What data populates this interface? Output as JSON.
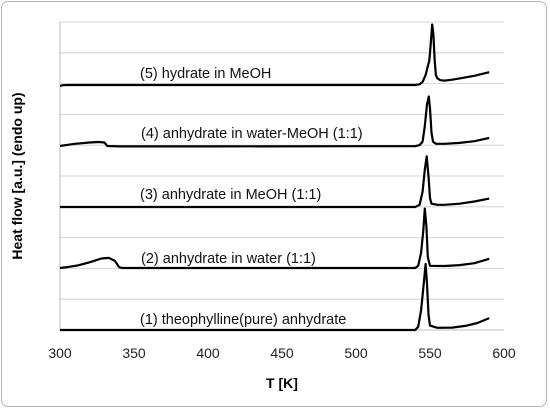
{
  "chart_data": {
    "type": "line",
    "title": "",
    "xlabel": "T [K]",
    "ylabel": "Heat flow [a.u.] (endo up)",
    "xlim": [
      300,
      600
    ],
    "xticks": [
      "300",
      "350",
      "400",
      "450",
      "500",
      "550",
      "600"
    ],
    "grid": "horizontal",
    "series": [
      {
        "name": "(5) hydrate in MeOH",
        "points": [
          [
            300,
            0.6
          ],
          [
            302,
            0.9
          ],
          [
            305,
            1.0
          ],
          [
            320,
            1.0
          ],
          [
            400,
            1.0
          ],
          [
            500,
            1.0
          ],
          [
            540,
            1.0
          ],
          [
            543,
            1.3
          ],
          [
            545,
            2.4
          ],
          [
            547,
            5.5
          ],
          [
            548.5,
            9.5
          ],
          [
            549.5,
            12.0
          ],
          [
            550.5,
            19.5
          ],
          [
            551.5,
            28.5
          ],
          [
            552.3,
            24.0
          ],
          [
            553.2,
            12.0
          ],
          [
            554,
            5.5
          ],
          [
            555,
            4.0
          ],
          [
            557,
            3.2
          ],
          [
            560,
            3.0
          ],
          [
            565,
            3.4
          ],
          [
            570,
            4.0
          ],
          [
            580,
            5.2
          ],
          [
            590,
            6.8
          ]
        ]
      },
      {
        "name": "(4) anhydrate in water-MeOH (1:1)",
        "points": [
          [
            300,
            1.0
          ],
          [
            303,
            1.3
          ],
          [
            310,
            2.0
          ],
          [
            320,
            2.6
          ],
          [
            326,
            2.8
          ],
          [
            330,
            2.6
          ],
          [
            332,
            1.0
          ],
          [
            340,
            0.8
          ],
          [
            400,
            0.8
          ],
          [
            500,
            0.9
          ],
          [
            540,
            0.9
          ],
          [
            543,
            1.4
          ],
          [
            545,
            3.0
          ],
          [
            546.5,
            10.0
          ],
          [
            548,
            20.0
          ],
          [
            549.2,
            23.5
          ],
          [
            550,
            18.0
          ],
          [
            551,
            7.0
          ],
          [
            552,
            3.0
          ],
          [
            554,
            2.0
          ],
          [
            560,
            2.0
          ],
          [
            570,
            2.4
          ],
          [
            580,
            3.2
          ],
          [
            590,
            4.7
          ]
        ]
      },
      {
        "name": "(3) anhydrate in MeOH (1:1)",
        "points": [
          [
            300,
            1.0
          ],
          [
            350,
            1.0
          ],
          [
            400,
            1.0
          ],
          [
            500,
            1.0
          ],
          [
            540,
            1.0
          ],
          [
            543,
            2.0
          ],
          [
            545,
            8.0
          ],
          [
            546.5,
            18.0
          ],
          [
            547.8,
            24.0
          ],
          [
            549,
            15.0
          ],
          [
            550,
            5.0
          ],
          [
            551,
            2.5
          ],
          [
            555,
            2.0
          ],
          [
            560,
            2.0
          ],
          [
            570,
            2.5
          ],
          [
            580,
            3.5
          ],
          [
            590,
            4.8
          ]
        ]
      },
      {
        "name": "(2) anhydrate in water (1:1)",
        "points": [
          [
            300,
            1.0
          ],
          [
            305,
            1.4
          ],
          [
            312,
            2.2
          ],
          [
            320,
            3.6
          ],
          [
            328,
            5.3
          ],
          [
            333,
            5.6
          ],
          [
            337,
            4.3
          ],
          [
            340,
            1.3
          ],
          [
            342,
            1.0
          ],
          [
            400,
            1.0
          ],
          [
            500,
            1.0
          ],
          [
            540,
            1.0
          ],
          [
            542,
            2.0
          ],
          [
            544,
            8.0
          ],
          [
            545.5,
            18.0
          ],
          [
            546.5,
            28.0
          ],
          [
            547.6,
            20.0
          ],
          [
            548.5,
            6.0
          ],
          [
            550,
            2.0
          ],
          [
            560,
            1.9
          ],
          [
            570,
            2.3
          ],
          [
            580,
            3.2
          ],
          [
            590,
            5.2
          ]
        ]
      },
      {
        "name": "(1) theophylline(pure) anhydrate",
        "points": [
          [
            300,
            1.0
          ],
          [
            400,
            1.0
          ],
          [
            500,
            1.0
          ],
          [
            540,
            1.0
          ],
          [
            542,
            2.5
          ],
          [
            544,
            10.0
          ],
          [
            545.5,
            20.0
          ],
          [
            547,
            31.0
          ],
          [
            548,
            22.0
          ],
          [
            549,
            8.0
          ],
          [
            550,
            3.0
          ],
          [
            555,
            2.0
          ],
          [
            565,
            2.1
          ],
          [
            575,
            3.0
          ],
          [
            582,
            4.2
          ],
          [
            590,
            6.4
          ]
        ]
      }
    ]
  }
}
